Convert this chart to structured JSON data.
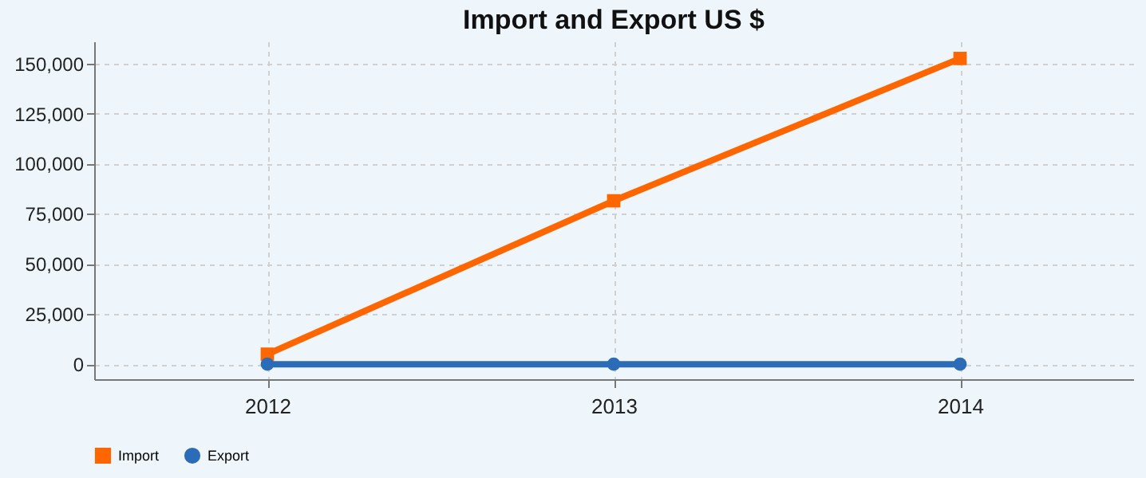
{
  "chart_data": {
    "type": "line",
    "title": "Import and Export  US $",
    "categories": [
      "2012",
      "2013",
      "2014"
    ],
    "series": [
      {
        "name": "Import",
        "color": "#ff6600",
        "marker": "square",
        "values": [
          5000,
          81500,
          152500
        ]
      },
      {
        "name": "Export",
        "color": "#2b6cb8",
        "marker": "circle",
        "values": [
          0,
          0,
          0
        ]
      }
    ],
    "ylim": [
      -7500,
      161000
    ],
    "yticks": [
      0,
      {
        "value": 25000,
        "label": "25,000"
      },
      {
        "value": 50000,
        "label": "50,000"
      },
      {
        "value": 75000,
        "label": "75,000"
      },
      {
        "value": 100000,
        "label": "100,000"
      },
      {
        "value": 125000,
        "label": "125,000"
      },
      {
        "value": 150000,
        "label": "150,000"
      }
    ],
    "grid": true,
    "legend": "bottom",
    "line_style": "solid"
  }
}
